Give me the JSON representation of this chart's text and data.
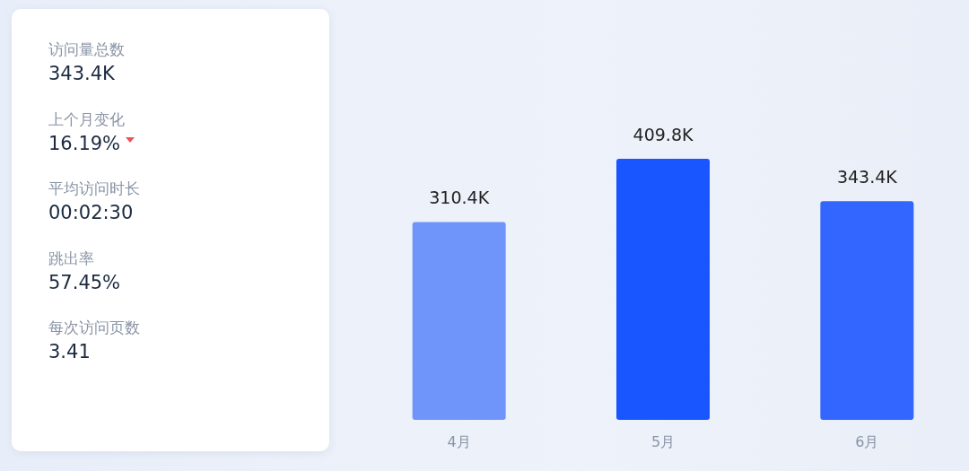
{
  "chart_data": [
    {
      "type": "other",
      "annotations": [
        "访问量总数",
        "343.4K",
        "上个月变化",
        "16.19%",
        "平均访问时长",
        "00:02:30",
        "跳出率",
        "57.45%",
        "每次访问页数",
        "3.41"
      ]
    },
    {
      "type": "bar",
      "categories": [
        "4月",
        "5月",
        "6月"
      ],
      "values": [
        310.4,
        409.8,
        343.4
      ],
      "colors": [
        "#7095fa",
        "#1a56ff",
        "#3366ff"
      ],
      "value_labels": [
        "310.4K",
        "409.8K",
        "343.4K"
      ]
    }
  ]
}
